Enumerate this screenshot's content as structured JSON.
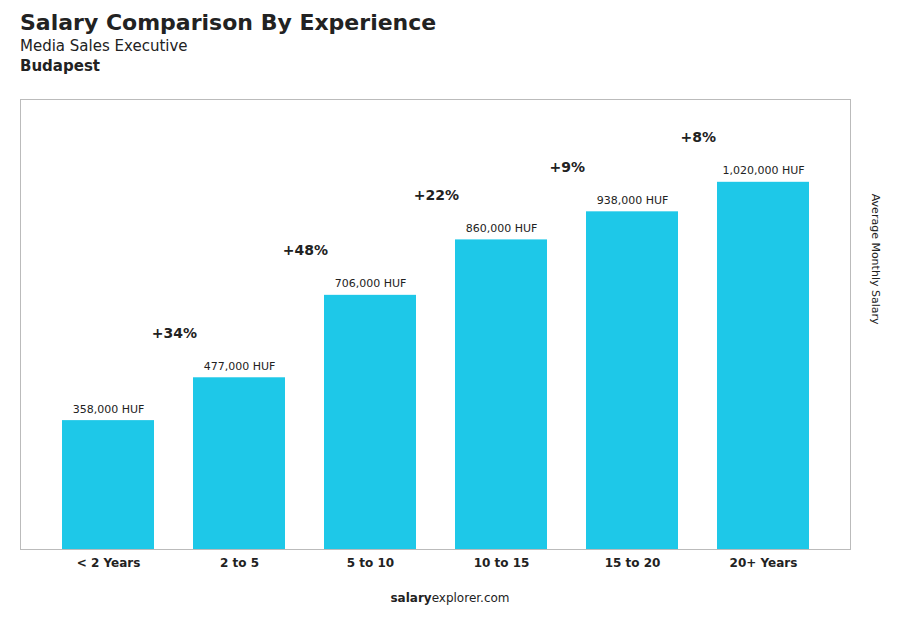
{
  "chart_data": {
    "type": "bar",
    "title": "Salary Comparison By Experience",
    "subtitle": [
      "Media Sales Executive",
      "Budapest"
    ],
    "caption": [
      "salary",
      "explorer.com"
    ],
    "categories": [
      "< 2 Years",
      "2 to 5",
      "5 to 10",
      "10 to 15",
      "15 to 20",
      "20+ Years"
    ],
    "values": [
      358000,
      477000,
      706000,
      860000,
      938000,
      1020000
    ],
    "value_labels": [
      "358,000 HUF",
      "477,000 HUF",
      "706,000 HUF",
      "860,000 HUF",
      "938,000 HUF",
      "1,020,000 HUF"
    ],
    "data_labels": true,
    "annotations": [
      {
        "text": "+34%",
        "between": [
          "< 2 Years",
          "2 to 5"
        ]
      },
      {
        "text": "+48%",
        "between": [
          "2 to 5",
          "5 to 10"
        ]
      },
      {
        "text": "+22%",
        "between": [
          "5 to 10",
          "10 to 15"
        ]
      },
      {
        "text": "+9%",
        "between": [
          "10 to 15",
          "15 to 20"
        ]
      },
      {
        "text": "+8%",
        "between": [
          "15 to 20",
          "20+ Years"
        ]
      }
    ],
    "ylabel": "Average Monthly Salary",
    "color": "#1ec8e8",
    "ylim": [
      0,
      1250000
    ],
    "tick_labels": "x"
  }
}
